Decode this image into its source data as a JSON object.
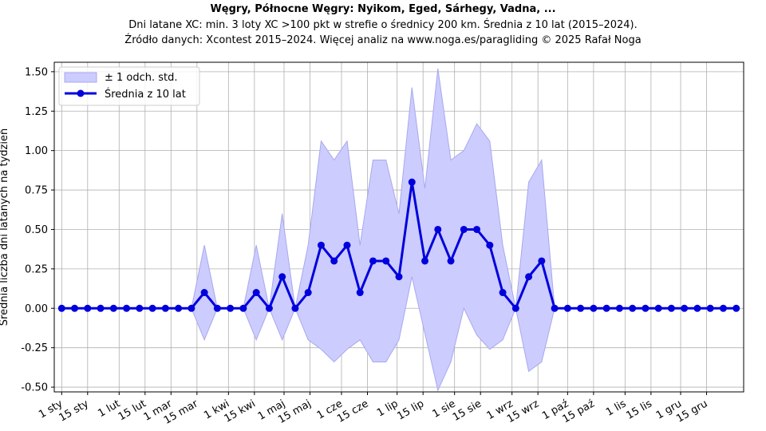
{
  "chart_data": {
    "type": "line",
    "title": "Węgry, Północne Węgry: Nyikom, Eged, Sárhegy, Vadna, ...",
    "subtitle_lines": [
      "Dni latane XC: min. 3 loty XC >100 pkt w strefie o średnicy 200 km. Średnia z 10 lat (2015–2024).",
      "Źródło danych: Xcontest 2015–2024. Więcej analiz na www.noga.es/paragliding © 2025 Rafał Noga"
    ],
    "ylabel": "Średnia liczba dni latanych na tydzień",
    "xlabel": "",
    "x_tick_labels": [
      "1 sty",
      "15 sty",
      "1 lut",
      "15 lut",
      "1 mar",
      "15 mar",
      "1 kwi",
      "15 kwi",
      "1 maj",
      "15 maj",
      "1 cze",
      "15 cze",
      "1 lip",
      "15 lip",
      "1 sie",
      "15 sie",
      "1 wrz",
      "15 wrz",
      "1 paź",
      "15 paź",
      "1 lis",
      "15 lis",
      "1 gru",
      "15 gru"
    ],
    "x_tick_days": [
      1,
      15,
      32,
      46,
      60,
      74,
      91,
      105,
      121,
      135,
      152,
      166,
      182,
      196,
      213,
      227,
      244,
      258,
      274,
      288,
      305,
      319,
      335,
      349
    ],
    "x_range": [
      -3,
      369
    ],
    "y_range": [
      -0.53,
      1.56
    ],
    "y_ticks": [
      "-0.50",
      "-0.25",
      "0.00",
      "0.25",
      "0.50",
      "0.75",
      "1.00",
      "1.25",
      "1.50"
    ],
    "y_tick_values": [
      -0.5,
      -0.25,
      0,
      0.25,
      0.5,
      0.75,
      1.0,
      1.25,
      1.5
    ],
    "grid": true,
    "legend_position": "top-left",
    "series": [
      {
        "name": "Średnia z 10 lat",
        "color": "#0000dd",
        "x_days": [
          1,
          8,
          15,
          22,
          29,
          36,
          43,
          50,
          57,
          64,
          71,
          78,
          85,
          92,
          99,
          106,
          113,
          120,
          127,
          134,
          141,
          148,
          155,
          162,
          169,
          176,
          183,
          190,
          197,
          204,
          211,
          218,
          225,
          232,
          239,
          246,
          253,
          260,
          267,
          274,
          281,
          288,
          295,
          302,
          309,
          316,
          323,
          330,
          337,
          344,
          351,
          358,
          365
        ],
        "values": [
          0,
          0,
          0,
          0,
          0,
          0,
          0,
          0,
          0,
          0,
          0,
          0.1,
          0,
          0,
          0,
          0.1,
          0,
          0.2,
          0,
          0.1,
          0.4,
          0.3,
          0.4,
          0.1,
          0.3,
          0.3,
          0.2,
          0.8,
          0.3,
          0.5,
          0.3,
          0.5,
          0.5,
          0.4,
          0.1,
          0,
          0.2,
          0.3,
          0,
          0,
          0,
          0,
          0,
          0,
          0,
          0,
          0,
          0,
          0,
          0,
          0,
          0,
          0
        ]
      }
    ],
    "band": {
      "name": "± 1 odch. std.",
      "color": "#ccccff",
      "edge_color": "#a8a8ee",
      "upper": [
        0,
        0,
        0,
        0,
        0,
        0,
        0,
        0,
        0,
        0,
        0,
        0.4,
        0,
        0,
        0,
        0.4,
        0,
        0.6,
        0,
        0.4,
        1.06,
        0.94,
        1.06,
        0.4,
        0.94,
        0.94,
        0.6,
        1.4,
        0.76,
        1.52,
        0.94,
        1.0,
        1.17,
        1.06,
        0.4,
        0,
        0.8,
        0.94,
        0,
        0,
        0,
        0,
        0,
        0,
        0,
        0,
        0,
        0,
        0,
        0,
        0,
        0,
        0
      ],
      "lower": [
        0,
        0,
        0,
        0,
        0,
        0,
        0,
        0,
        0,
        0,
        0,
        -0.2,
        0,
        0,
        0,
        -0.2,
        0,
        -0.2,
        0,
        -0.2,
        -0.26,
        -0.34,
        -0.26,
        -0.2,
        -0.34,
        -0.34,
        -0.2,
        0.2,
        -0.16,
        -0.52,
        -0.34,
        0,
        -0.17,
        -0.26,
        -0.2,
        0,
        -0.4,
        -0.34,
        0,
        0,
        0,
        0,
        0,
        0,
        0,
        0,
        0,
        0,
        0,
        0,
        0,
        0,
        0
      ]
    }
  }
}
